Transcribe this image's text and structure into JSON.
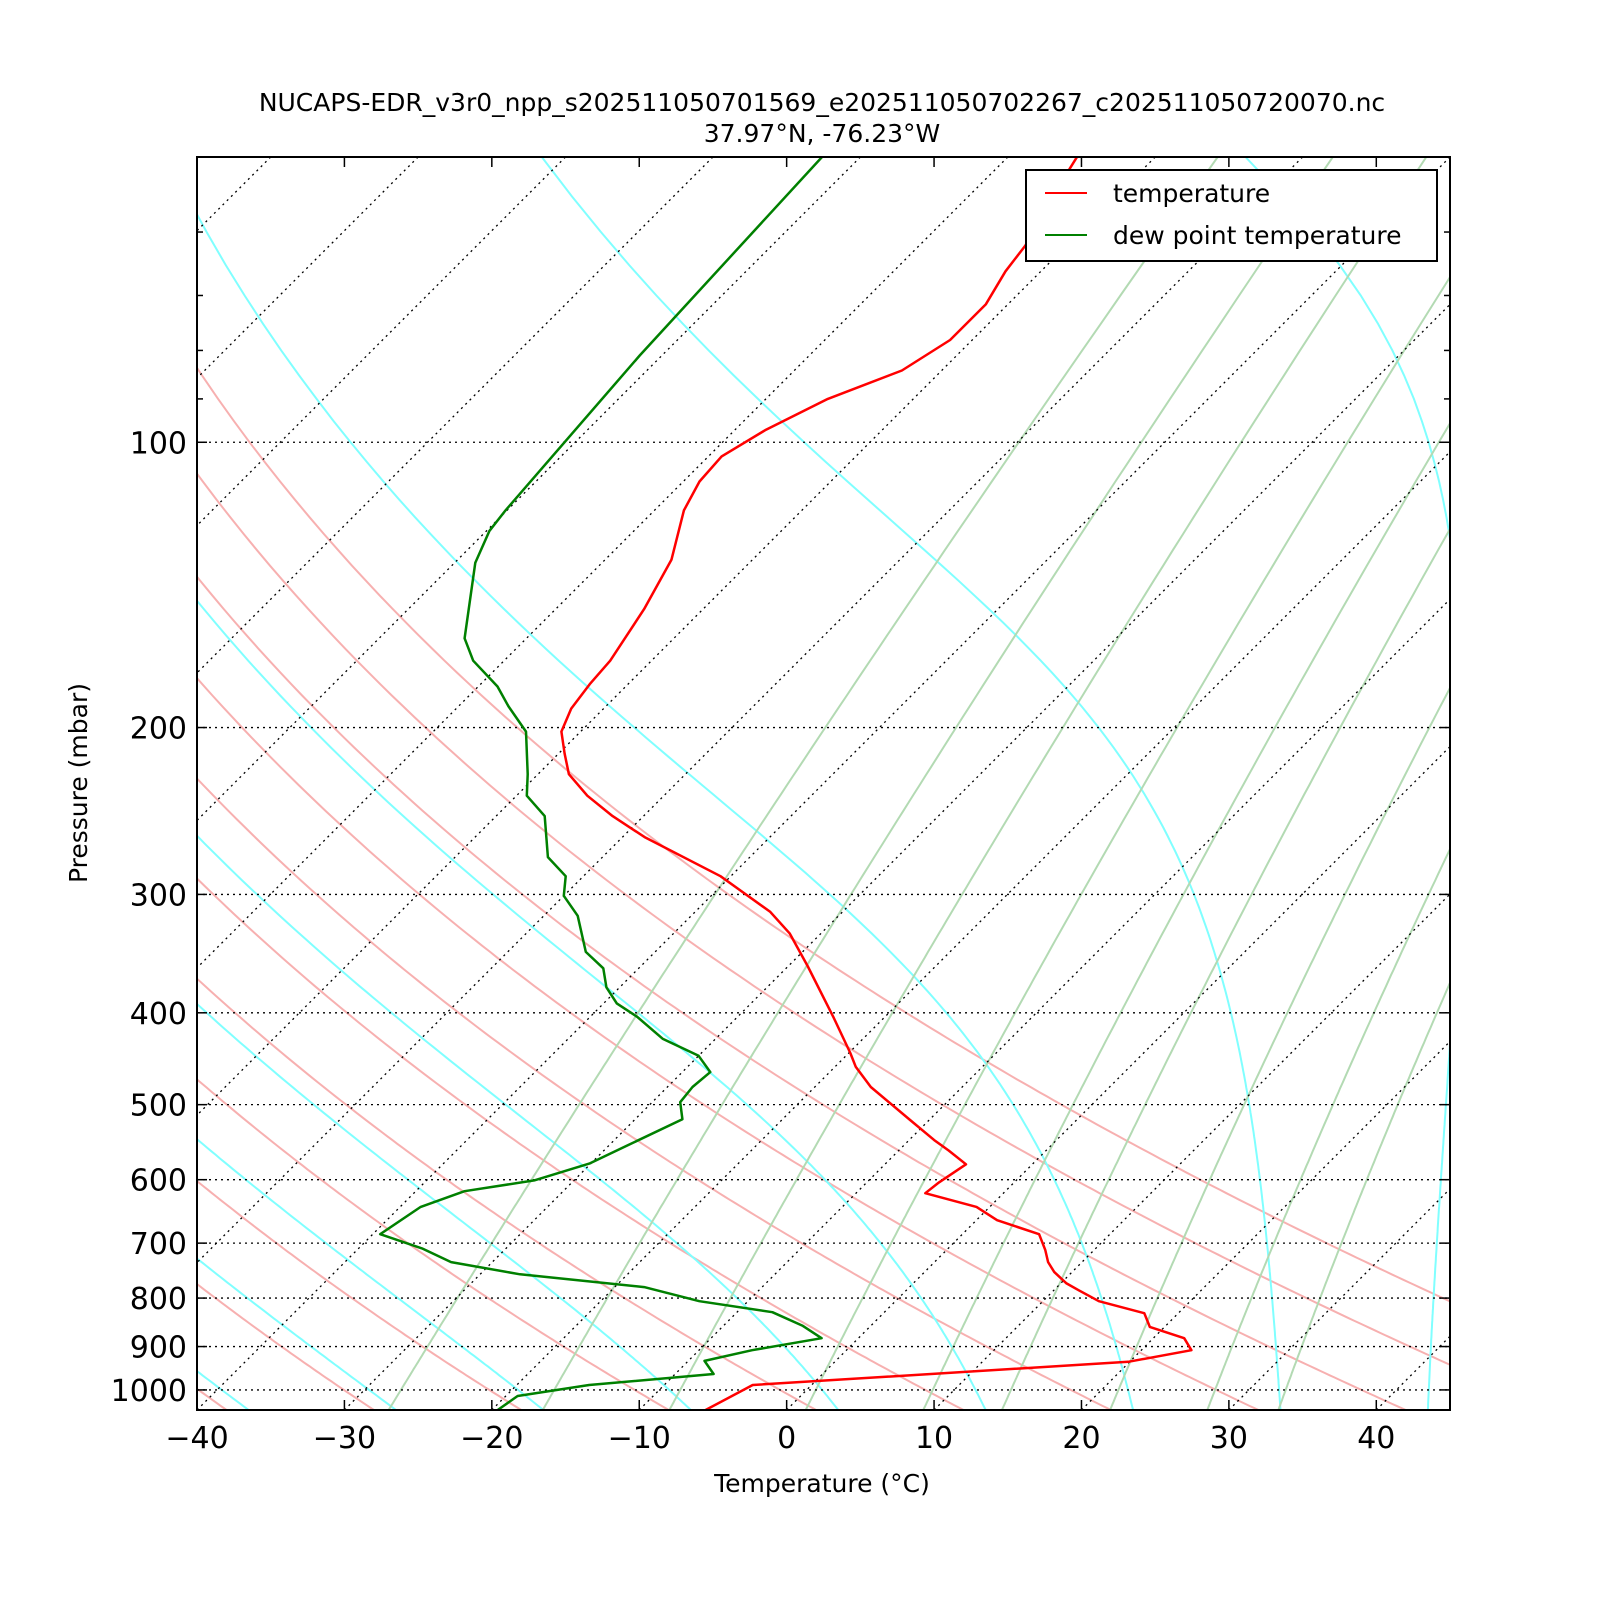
{
  "chart_data": {
    "type": "line",
    "subtype": "skew-t log-p",
    "title": "NUCAPS-EDR_v3r0_npp_s202511050701569_e202511050702267_c202511050720070.nc",
    "subtitle": "37.97°N, -76.23°W",
    "xlabel": "Temperature (°C)",
    "ylabel": "Pressure (mbar)",
    "xlim": [
      -40,
      45
    ],
    "ylim": [
      1050,
      50
    ],
    "x_ticks": [
      "−40",
      "−30",
      "−20",
      "−10",
      "0",
      "10",
      "20",
      "30",
      "40"
    ],
    "x_tick_values": [
      -40,
      -30,
      -20,
      -10,
      0,
      10,
      20,
      30,
      40
    ],
    "y_ticks": [
      "100",
      "200",
      "300",
      "400",
      "500",
      "600",
      "700",
      "800",
      "900",
      "1000"
    ],
    "y_tick_values": [
      100,
      200,
      300,
      400,
      500,
      600,
      700,
      800,
      900,
      1000
    ],
    "legend": {
      "placement": "top-right",
      "entries": [
        "temperature",
        "dew point temperature"
      ]
    },
    "colors": {
      "temperature": "#ff0000",
      "dewpoint": "#008000",
      "dry_adiabat": "#f7b0b0",
      "moist_adiabat": "#80ffff",
      "mixing_ratio": "#b3dab3",
      "isotherm": "#000000"
    },
    "series": [
      {
        "name": "temperature",
        "points_p_T": [
          [
            50,
            -65.3
          ],
          [
            55,
            -64.3
          ],
          [
            62,
            -62.8
          ],
          [
            66,
            -62.4
          ],
          [
            71.5,
            -61.5
          ],
          [
            78,
            -61.5
          ],
          [
            84,
            -62.7
          ],
          [
            90,
            -65.8
          ],
          [
            97,
            -67.9
          ],
          [
            103.5,
            -69.1
          ],
          [
            110,
            -68.9
          ],
          [
            118,
            -68.0
          ],
          [
            133,
            -65.5
          ],
          [
            150,
            -64.0
          ],
          [
            170,
            -62.8
          ],
          [
            180,
            -62.6
          ],
          [
            191,
            -62.2
          ],
          [
            202,
            -61.3
          ],
          [
            213,
            -59.6
          ],
          [
            224,
            -57.9
          ],
          [
            236,
            -55.2
          ],
          [
            248,
            -52.1
          ],
          [
            261,
            -48.5
          ],
          [
            287,
            -40.7
          ],
          [
            313,
            -34.9
          ],
          [
            330,
            -32.1
          ],
          [
            357,
            -28.7
          ],
          [
            404,
            -23.5
          ],
          [
            441,
            -19.9
          ],
          [
            456,
            -18.6
          ],
          [
            479,
            -16.2
          ],
          [
            519,
            -11.3
          ],
          [
            545,
            -8.3
          ],
          [
            559,
            -6.6
          ],
          [
            578,
            -4.5
          ],
          [
            604,
            -5.1
          ],
          [
            620,
            -5.3
          ],
          [
            641,
            -0.9
          ],
          [
            662,
            1.4
          ],
          [
            685,
            5.2
          ],
          [
            712,
            6.7
          ],
          [
            733,
            7.7
          ],
          [
            751,
            8.8
          ],
          [
            772,
            10.4
          ],
          [
            785,
            11.7
          ],
          [
            806,
            13.8
          ],
          [
            830,
            17.7
          ],
          [
            858,
            19.0
          ],
          [
            882,
            22.1
          ],
          [
            908,
            23.4
          ],
          [
            934,
            19.9
          ],
          [
            988,
            -4.0
          ],
          [
            1050,
            -5.5
          ]
        ]
      },
      {
        "name": "dew point temperature",
        "points_p_T": [
          [
            50,
            -82.6
          ],
          [
            81,
            -81.5
          ],
          [
            118,
            -80.1
          ],
          [
            124,
            -79.8
          ],
          [
            134,
            -78.6
          ],
          [
            161,
            -74.2
          ],
          [
            170,
            -72.1
          ],
          [
            181,
            -68.7
          ],
          [
            190,
            -66.6
          ],
          [
            202,
            -63.7
          ],
          [
            224,
            -60.7
          ],
          [
            236,
            -59.3
          ],
          [
            248,
            -56.7
          ],
          [
            274,
            -53.7
          ],
          [
            287,
            -51.2
          ],
          [
            301,
            -50.0
          ],
          [
            316,
            -47.7
          ],
          [
            345,
            -44.7
          ],
          [
            359,
            -42.4
          ],
          [
            376,
            -40.9
          ],
          [
            391,
            -39.1
          ],
          [
            404,
            -36.8
          ],
          [
            426,
            -33.6
          ],
          [
            444,
            -30.0
          ],
          [
            462,
            -28.1
          ],
          [
            479,
            -28.3
          ],
          [
            497,
            -28.1
          ],
          [
            518,
            -26.8
          ],
          [
            577,
            -30.1
          ],
          [
            601,
            -32.7
          ],
          [
            617,
            -36.7
          ],
          [
            641,
            -38.6
          ],
          [
            685,
            -39.5
          ],
          [
            709,
            -35.7
          ],
          [
            733,
            -32.8
          ],
          [
            755,
            -27.3
          ],
          [
            779,
            -18.0
          ],
          [
            806,
            -13.3
          ],
          [
            828,
            -7.6
          ],
          [
            856,
            -4.6
          ],
          [
            882,
            -2.5
          ],
          [
            908,
            -6.4
          ],
          [
            932,
            -8.9
          ],
          [
            962,
            -7.4
          ],
          [
            988,
            -15.1
          ],
          [
            1015,
            -19.2
          ],
          [
            1050,
            -19.6
          ]
        ]
      }
    ]
  }
}
